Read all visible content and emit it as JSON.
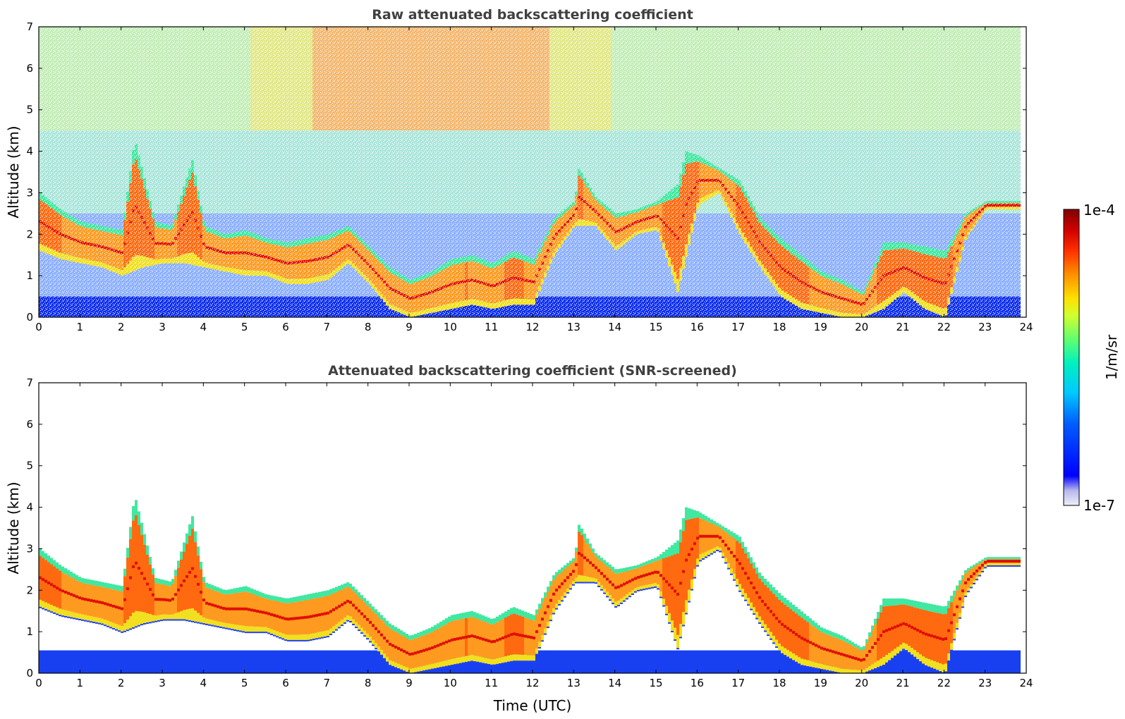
{
  "chart_data": [
    {
      "type": "heatmap",
      "title": "Raw attenuated backscattering coefficient",
      "xlabel": "",
      "ylabel": "Altitude (km)",
      "xlim": [
        0,
        24
      ],
      "ylim": [
        0,
        7
      ],
      "x_ticks": [
        "0",
        "1",
        "2",
        "3",
        "4",
        "5",
        "6",
        "7",
        "8",
        "9",
        "10",
        "11",
        "12",
        "13",
        "14",
        "15",
        "16",
        "17",
        "18",
        "19",
        "20",
        "21",
        "22",
        "23",
        "24"
      ],
      "y_ticks": [
        "0",
        "1",
        "2",
        "3",
        "4",
        "5",
        "6",
        "7"
      ],
      "screened": false,
      "data_extent_x": [
        0,
        23.8
      ],
      "aerosol_layer_top_km": [
        [
          0,
          3.0
        ],
        [
          0.5,
          2.6
        ],
        [
          1,
          2.3
        ],
        [
          1.5,
          2.2
        ],
        [
          2,
          2.1
        ],
        [
          2.3,
          4.3
        ],
        [
          2.8,
          2.3
        ],
        [
          3.2,
          2.2
        ],
        [
          3.7,
          3.8
        ],
        [
          4,
          2.2
        ],
        [
          4.5,
          2.0
        ],
        [
          5,
          2.1
        ],
        [
          5.5,
          1.9
        ],
        [
          6,
          1.8
        ],
        [
          6.5,
          1.9
        ],
        [
          7,
          2.0
        ],
        [
          7.5,
          2.2
        ],
        [
          8,
          1.7
        ],
        [
          8.5,
          1.2
        ],
        [
          9,
          0.9
        ],
        [
          9.5,
          1.1
        ],
        [
          10,
          1.4
        ],
        [
          10.5,
          1.5
        ],
        [
          11,
          1.3
        ],
        [
          11.5,
          1.6
        ],
        [
          12,
          1.4
        ],
        [
          12.5,
          2.4
        ],
        [
          13,
          2.8
        ],
        [
          13.1,
          3.6
        ],
        [
          13.5,
          2.9
        ],
        [
          14,
          2.5
        ],
        [
          14.5,
          2.6
        ],
        [
          15,
          2.8
        ],
        [
          15.5,
          3.2
        ],
        [
          15.7,
          4.0
        ],
        [
          16,
          3.9
        ],
        [
          16.5,
          3.6
        ],
        [
          17,
          3.3
        ],
        [
          17.5,
          2.4
        ],
        [
          18,
          1.9
        ],
        [
          18.5,
          1.5
        ],
        [
          19,
          1.1
        ],
        [
          19.5,
          0.9
        ],
        [
          20,
          0.6
        ],
        [
          20.5,
          1.8
        ],
        [
          21,
          1.8
        ],
        [
          21.5,
          1.7
        ],
        [
          22,
          1.6
        ],
        [
          22.5,
          2.5
        ],
        [
          23,
          2.8
        ],
        [
          23.5,
          2.8
        ],
        [
          23.8,
          2.8
        ]
      ],
      "aerosol_layer_bottom_km": [
        [
          0,
          1.6
        ],
        [
          0.5,
          1.4
        ],
        [
          1,
          1.3
        ],
        [
          1.5,
          1.2
        ],
        [
          2,
          1.0
        ],
        [
          2.5,
          1.2
        ],
        [
          3,
          1.3
        ],
        [
          3.5,
          1.3
        ],
        [
          4,
          1.2
        ],
        [
          4.5,
          1.1
        ],
        [
          5,
          1.0
        ],
        [
          5.5,
          1.0
        ],
        [
          6,
          0.8
        ],
        [
          6.5,
          0.8
        ],
        [
          7,
          0.9
        ],
        [
          7.5,
          1.3
        ],
        [
          8,
          0.8
        ],
        [
          8.5,
          0.2
        ],
        [
          9,
          0.0
        ],
        [
          9.5,
          0.1
        ],
        [
          10,
          0.2
        ],
        [
          10.5,
          0.3
        ],
        [
          11,
          0.2
        ],
        [
          11.5,
          0.3
        ],
        [
          12,
          0.3
        ],
        [
          12.5,
          1.5
        ],
        [
          13,
          2.2
        ],
        [
          13.5,
          2.2
        ],
        [
          14,
          1.6
        ],
        [
          14.5,
          2.0
        ],
        [
          15,
          2.1
        ],
        [
          15.5,
          0.6
        ],
        [
          16,
          2.7
        ],
        [
          16.5,
          3.0
        ],
        [
          17,
          2.0
        ],
        [
          17.5,
          1.2
        ],
        [
          18,
          0.5
        ],
        [
          18.5,
          0.2
        ],
        [
          19,
          0.1
        ],
        [
          19.5,
          0.0
        ],
        [
          20,
          0.0
        ],
        [
          20.5,
          0.2
        ],
        [
          21,
          0.6
        ],
        [
          21.5,
          0.2
        ],
        [
          22,
          0.0
        ],
        [
          22.5,
          1.9
        ],
        [
          23,
          2.6
        ],
        [
          23.5,
          2.6
        ],
        [
          23.8,
          2.6
        ]
      ]
    },
    {
      "type": "heatmap",
      "title": "Attenuated backscattering coefficient (SNR-screened)",
      "xlabel": "Time (UTC)",
      "ylabel": "Altitude (km)",
      "xlim": [
        0,
        24
      ],
      "ylim": [
        0,
        7
      ],
      "x_ticks": [
        "0",
        "1",
        "2",
        "3",
        "4",
        "5",
        "6",
        "7",
        "8",
        "9",
        "10",
        "11",
        "12",
        "13",
        "14",
        "15",
        "16",
        "17",
        "18",
        "19",
        "20",
        "21",
        "22",
        "23",
        "24"
      ],
      "y_ticks": [
        "0",
        "1",
        "2",
        "3",
        "4",
        "5",
        "6",
        "7"
      ],
      "screened": true,
      "data_extent_x": [
        0,
        23.8
      ]
    }
  ],
  "colorbar": {
    "label": "1/m/sr",
    "max_label": "1e-4",
    "min_label": "1e-7",
    "scale": "log",
    "range": [
      1e-07,
      0.0001
    ],
    "colors": [
      "#eeeef8",
      "#c8c8ee",
      "#9a9ae6",
      "#0000ff",
      "#0050ff",
      "#00a0ff",
      "#00e0e0",
      "#40ff90",
      "#b0ff40",
      "#ffff00",
      "#ffb000",
      "#ff5000",
      "#ff0000",
      "#b00000",
      "#800000"
    ]
  }
}
